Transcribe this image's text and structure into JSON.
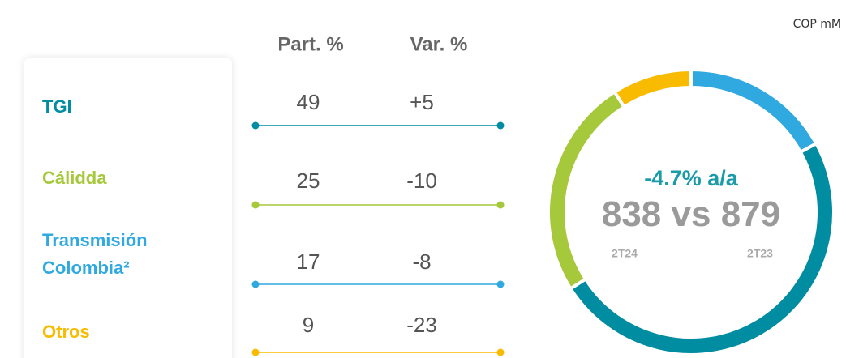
{
  "chart_data": {
    "type": "donut",
    "unit": "COP mM",
    "categories": [
      "TGI",
      "Cálidda",
      "Transmisión Colombia²",
      "Otros"
    ],
    "colors": [
      "#008da2",
      "#a5c93a",
      "#2fa9e0",
      "#f8bb00"
    ],
    "donut_order": [
      2,
      0,
      1,
      3
    ],
    "series": [
      {
        "name": "Part. %",
        "values": [
          49,
          25,
          17,
          9
        ]
      },
      {
        "name": "Var. %",
        "values": [
          5,
          -10,
          -8,
          -23
        ],
        "value_labels": [
          "+5",
          "-10",
          "-8",
          "-23"
        ]
      }
    ],
    "center": {
      "change": -4.7,
      "change_label": "-4.7% a/a",
      "current": 838,
      "connector": "vs",
      "previous": 879,
      "current_period": "2T24",
      "previous_period": "2T23"
    }
  }
}
